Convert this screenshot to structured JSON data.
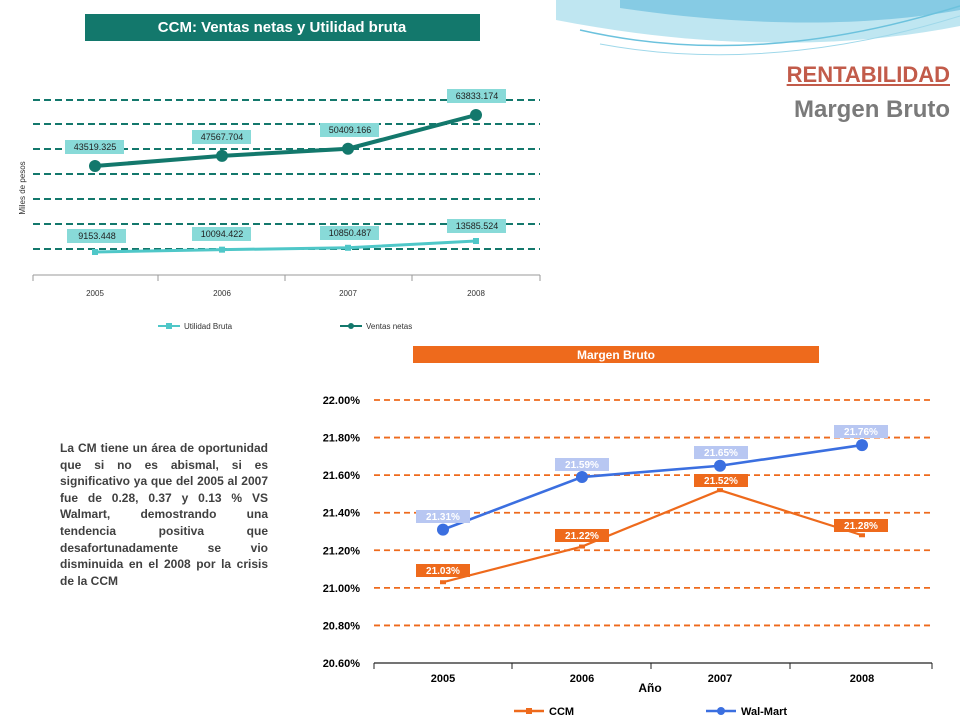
{
  "slide": {
    "title": "RENTABILIDAD",
    "subtitle": "Margen Bruto",
    "body": "La CM tiene un área de oportunidad que si no es abismal, si es significativo ya que del 2005 al 2007 fue de 0.28, 0.37 y 0.13 % VS Walmart, demostrando una tendencia positiva que desafortunadamente se vio disminuida en el 2008 por la crisis de la CCM"
  },
  "chart_data": [
    {
      "type": "line",
      "title": "CCM: Ventas netas y Utilidad bruta",
      "ylabel": "Miles de pesos",
      "xlabel": "",
      "categories": [
        "2005",
        "2006",
        "2007",
        "2008"
      ],
      "series": [
        {
          "name": "Utilidad Bruta",
          "values": [
            9153.448,
            10094.422,
            10850.487,
            13585.524
          ],
          "labels": [
            "9153.448",
            "10094.422",
            "10850.487",
            "13585.524"
          ],
          "color": "#4fc7c8"
        },
        {
          "name": "Ventas netas",
          "values": [
            43519.325,
            47567.704,
            50409.166,
            63833.174
          ],
          "labels": [
            "43519.325",
            "47567.704",
            "50409.166",
            "63833.174"
          ],
          "color": "#13786c"
        }
      ],
      "grid": true,
      "legend": "bottom"
    },
    {
      "type": "line",
      "title": "Margen Bruto",
      "xlabel": "Año",
      "ylabel": "",
      "categories": [
        "2005",
        "2006",
        "2007",
        "2008"
      ],
      "yticks": [
        "20.60%",
        "20.80%",
        "21.00%",
        "21.20%",
        "21.40%",
        "21.60%",
        "21.80%",
        "22.00%"
      ],
      "ylim": [
        20.6,
        22.0
      ],
      "series": [
        {
          "name": "CCM",
          "values": [
            21.03,
            21.22,
            21.52,
            21.28
          ],
          "labels": [
            "21.03%",
            "21.22%",
            "21.52%",
            "21.28%"
          ],
          "color": "#ee6a1c"
        },
        {
          "name": "Wal-Mart",
          "values": [
            21.31,
            21.59,
            21.65,
            21.76
          ],
          "labels": [
            "21.31%",
            "21.59%",
            "21.65%",
            "21.76%"
          ],
          "color": "#3b6fe0"
        }
      ],
      "grid": true,
      "legend": "bottom"
    }
  ]
}
